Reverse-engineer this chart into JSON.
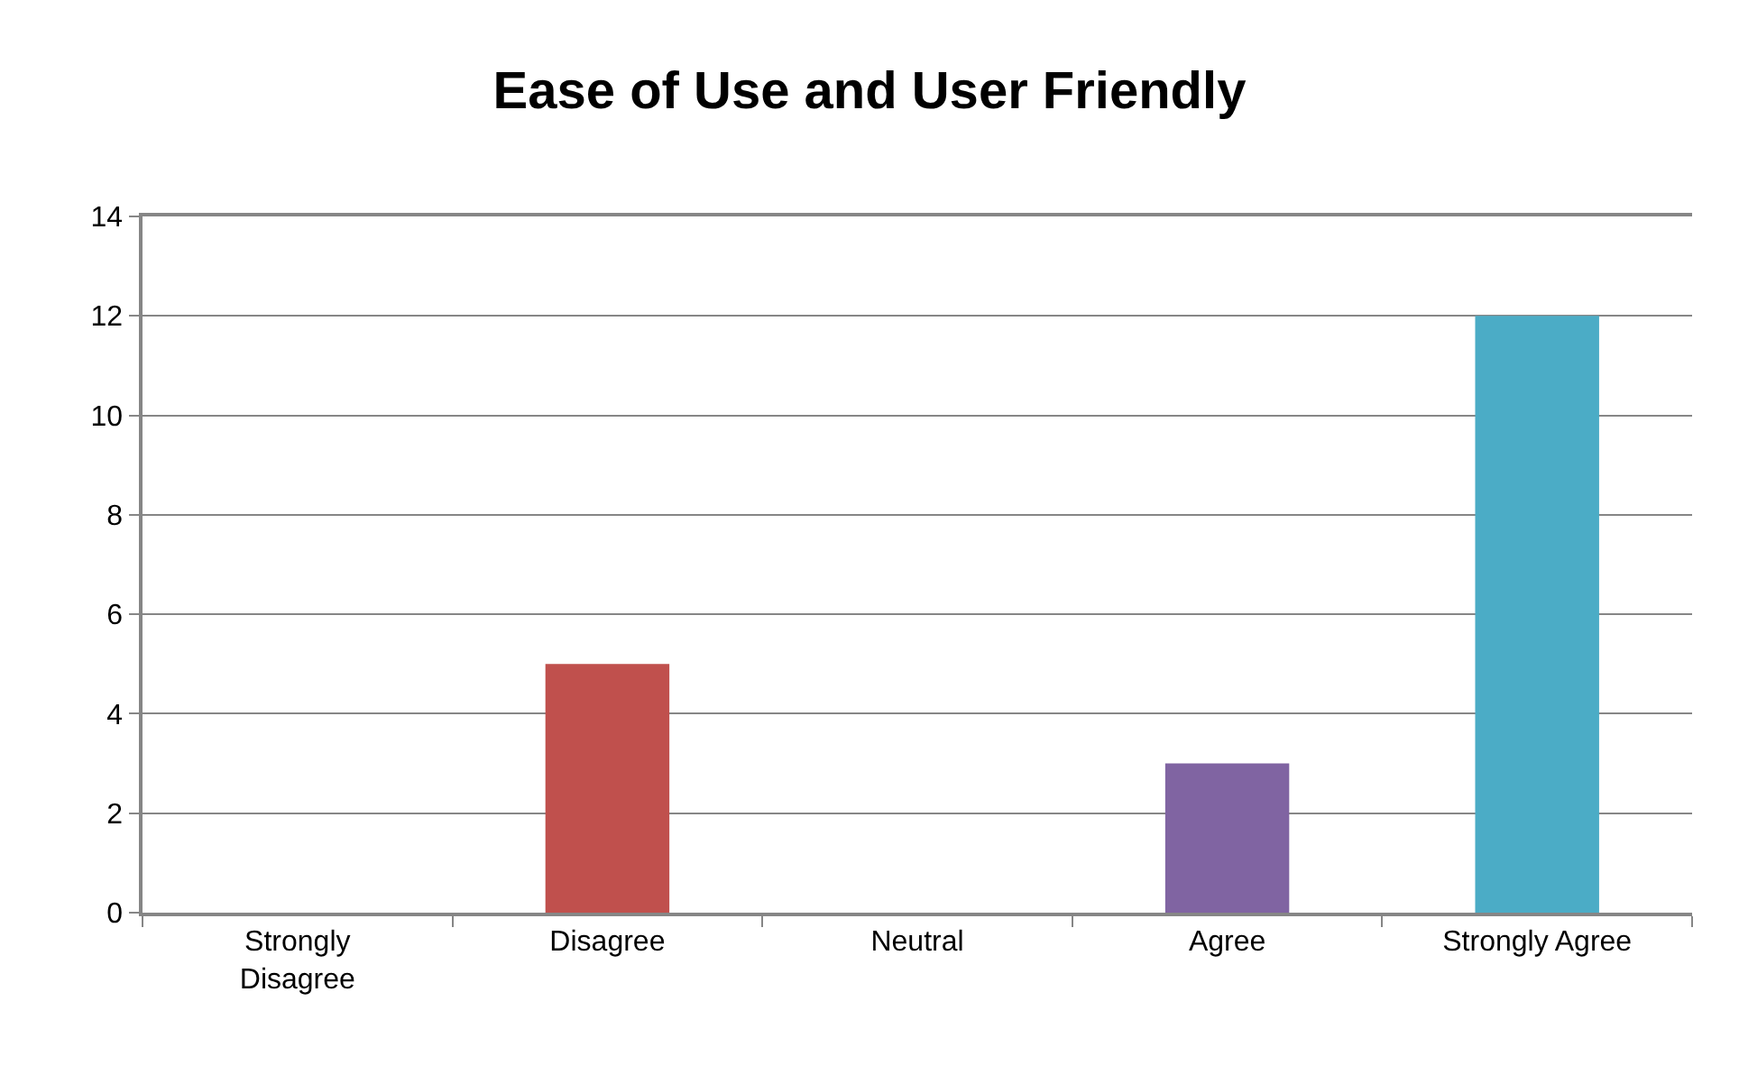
{
  "chart_data": {
    "type": "bar",
    "title": "Ease of Use and User Friendly",
    "categories": [
      "Strongly Disagree",
      "Disagree",
      "Neutral",
      "Agree",
      "Strongly Agree"
    ],
    "values": [
      0,
      5,
      0,
      3,
      12
    ],
    "colors": [
      "#4f81bd",
      "#c0504d",
      "#9bbb59",
      "#8064a2",
      "#4bacc6"
    ],
    "ylim": [
      0,
      14
    ],
    "yticks": [
      0,
      2,
      4,
      6,
      8,
      10,
      12,
      14
    ],
    "grid": "y"
  }
}
